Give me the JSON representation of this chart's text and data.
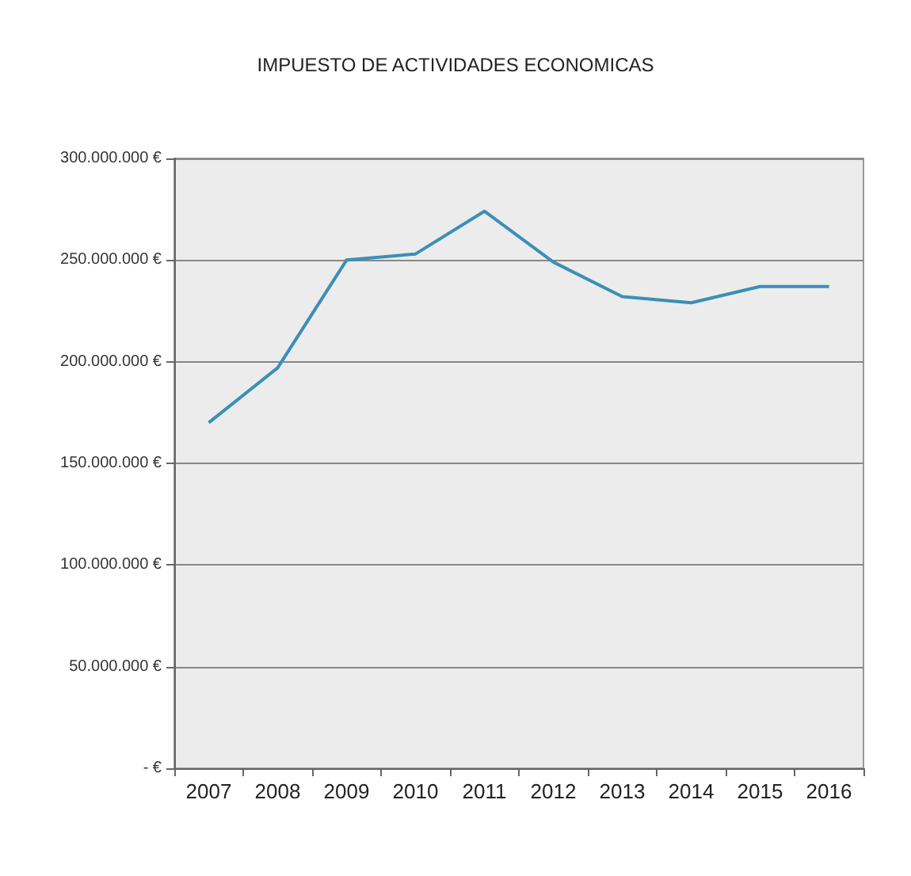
{
  "chart_data": {
    "type": "line",
    "title": "IMPUESTO DE ACTIVIDADES ECONOMICAS",
    "categories": [
      "2007",
      "2008",
      "2009",
      "2010",
      "2011",
      "2012",
      "2013",
      "2014",
      "2015",
      "2016"
    ],
    "series": [
      {
        "color": "#3a8fb7",
        "values": [
          170000000,
          197000000,
          250000000,
          253000000,
          274000000,
          249000000,
          232000000,
          229000000,
          237000000,
          237000000
        ]
      }
    ],
    "ylim": [
      0,
      300000000
    ],
    "yticks": [
      {
        "value": 0,
        "label": "- €"
      },
      {
        "value": 50000000,
        "label": "50.000.000 €"
      },
      {
        "value": 100000000,
        "label": "100.000.000 €"
      },
      {
        "value": 150000000,
        "label": "150.000.000 €"
      },
      {
        "value": 200000000,
        "label": "200.000.000 €"
      },
      {
        "value": 250000000,
        "label": "250.000.000 €"
      },
      {
        "value": 300000000,
        "label": "300.000.000 €"
      }
    ],
    "grid": "y",
    "marker": "none",
    "line_style": "solid"
  }
}
